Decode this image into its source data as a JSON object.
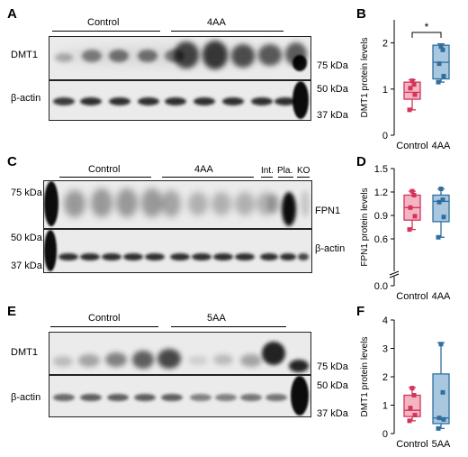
{
  "figure": {
    "panels": [
      {
        "letter": "A",
        "groups": [
          "Control",
          "4AA"
        ],
        "rows": [
          "DMT1",
          "β-actin"
        ],
        "markers": [
          "75 kDa",
          "50 kDa",
          "37 kDa"
        ]
      },
      {
        "letter": "C",
        "groups": [
          "Control",
          "4AA"
        ],
        "extra_lanes": [
          "Int.",
          "Pla.",
          "KO"
        ],
        "rows": [
          "FPN1",
          "β-actin"
        ],
        "markers": [
          "75 kDa",
          "50 kDa",
          "37 kDa"
        ]
      },
      {
        "letter": "E",
        "groups": [
          "Control",
          "5AA"
        ],
        "rows": [
          "DMT1",
          "β-actin"
        ],
        "markers": [
          "75 kDa",
          "50 kDa",
          "37 kDa"
        ]
      }
    ]
  },
  "chart_data": [
    {
      "letter": "B",
      "type": "box",
      "categories": [
        "Control",
        "4AA"
      ],
      "ylabel": "DMT1 protein levels",
      "ylim": [
        0,
        2.5
      ],
      "yticks": [
        "0",
        "1",
        "2"
      ],
      "significance": "*",
      "series": [
        {
          "values": [
            0.55,
            0.88,
            1.02,
            1.1,
            1.18
          ],
          "box": [
            0.78,
            0.93,
            1.15
          ],
          "whiskers": [
            0.55,
            1.2
          ],
          "color": "#d6335a",
          "fill": "#f2b6c3"
        },
        {
          "values": [
            1.15,
            1.28,
            1.55,
            1.85,
            1.92
          ],
          "box": [
            1.22,
            1.58,
            1.95
          ],
          "whiskers": [
            1.15,
            1.98
          ],
          "color": "#2e6f9e",
          "fill": "#a9c8e0"
        }
      ]
    },
    {
      "letter": "D",
      "type": "box",
      "categories": [
        "Control",
        "4AA"
      ],
      "ylabel": "FPN1 protein levels",
      "ylim": [
        0,
        1.5
      ],
      "yticks": [
        "0.0",
        "0.6",
        "0.9",
        "1.2",
        "1.5"
      ],
      "broken_axis": true,
      "series": [
        {
          "values": [
            0.72,
            0.89,
            1.0,
            1.16,
            1.21
          ],
          "box": [
            0.84,
            1.0,
            1.16
          ],
          "whiskers": [
            0.72,
            1.21
          ],
          "color": "#d6335a",
          "fill": "#f2b6c3"
        },
        {
          "values": [
            0.62,
            0.88,
            1.07,
            1.1,
            1.24
          ],
          "box": [
            0.82,
            1.08,
            1.16
          ],
          "whiskers": [
            0.62,
            1.24
          ],
          "color": "#2e6f9e",
          "fill": "#a9c8e0"
        }
      ]
    },
    {
      "letter": "F",
      "type": "box",
      "categories": [
        "Control",
        "5AA"
      ],
      "ylabel": "DMT1 protein levels",
      "ylim": [
        0,
        4
      ],
      "yticks": [
        "0",
        "1",
        "2",
        "3",
        "4"
      ],
      "series": [
        {
          "values": [
            0.45,
            0.65,
            0.9,
            1.35,
            1.6
          ],
          "box": [
            0.6,
            0.82,
            1.35
          ],
          "whiskers": [
            0.45,
            1.62
          ],
          "color": "#d6335a",
          "fill": "#f2b6c3"
        },
        {
          "values": [
            0.18,
            0.5,
            0.55,
            1.45,
            3.15
          ],
          "box": [
            0.35,
            0.55,
            2.1
          ],
          "whiskers": [
            0.18,
            3.2
          ],
          "color": "#2e6f9e",
          "fill": "#a9c8e0"
        }
      ]
    }
  ]
}
